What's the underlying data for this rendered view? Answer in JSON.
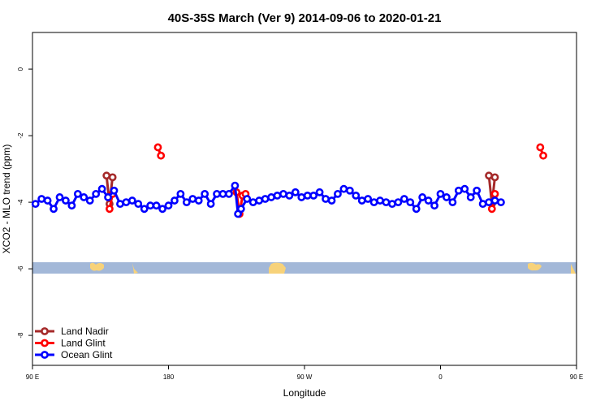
{
  "chart_data": {
    "type": "line",
    "title": "40S-35S March (Ver 9)   2014-09-06 to 2020-01-21",
    "xlabel": "Longitude",
    "ylabel": "XCO2 - MLO trend (ppm)",
    "xlim": [
      90,
      450
    ],
    "ylim": [
      -8.9,
      1.1
    ],
    "x_ticks": [
      {
        "value": 90,
        "label": "90 E"
      },
      {
        "value": 180,
        "label": "180"
      },
      {
        "value": 270,
        "label": "90 W"
      },
      {
        "value": 360,
        "label": "0"
      },
      {
        "value": 450,
        "label": "90 E"
      },
      {
        "value": 540,
        "label": "180"
      }
    ],
    "y_ticks": [
      {
        "value": 0,
        "label": "0"
      },
      {
        "value": -2,
        "label": "-2"
      },
      {
        "value": -4,
        "label": "-4"
      },
      {
        "value": -6,
        "label": "-6"
      },
      {
        "value": -8,
        "label": "-8"
      }
    ],
    "grid": false,
    "legend_position": "bottom-left",
    "series": [
      {
        "name": "Land Nadir",
        "color": "#a52a2a",
        "segments": [
          [
            [
              139,
              -3.2
            ],
            [
              141,
              -4.05
            ],
            [
              143,
              -3.25
            ]
          ],
          [
            [
              392,
              -3.2
            ],
            [
              394,
              -4.05
            ],
            [
              396,
              -3.25
            ]
          ]
        ]
      },
      {
        "name": "Land Glint",
        "color": "#ff0000",
        "segments": [
          [
            [
              141,
              -4.2
            ],
            [
              143,
              -3.75
            ]
          ],
          [
            [
              173,
              -2.35
            ],
            [
              175,
              -2.6
            ]
          ],
          [
            [
              225,
              -3.7
            ],
            [
              227,
              -4.35
            ],
            [
              229,
              -3.8
            ],
            [
              231,
              -3.75
            ]
          ],
          [
            [
              394,
              -4.2
            ],
            [
              396,
              -3.75
            ]
          ],
          [
            [
              426,
              -2.35
            ],
            [
              428,
              -2.6
            ]
          ]
        ]
      },
      {
        "name": "Ocean Glint",
        "color": "#0000ff",
        "segments": [
          [
            [
              92,
              -4.05
            ],
            [
              96,
              -3.9
            ],
            [
              100,
              -3.95
            ],
            [
              104,
              -4.2
            ],
            [
              108,
              -3.85
            ],
            [
              112,
              -3.95
            ],
            [
              116,
              -4.1
            ],
            [
              120,
              -3.75
            ],
            [
              124,
              -3.85
            ],
            [
              128,
              -3.95
            ],
            [
              132,
              -3.75
            ],
            [
              136,
              -3.6
            ],
            [
              140,
              -3.85
            ],
            [
              144,
              -3.65
            ],
            [
              148,
              -4.05
            ],
            [
              152,
              -4.0
            ],
            [
              156,
              -3.95
            ],
            [
              160,
              -4.05
            ],
            [
              164,
              -4.2
            ],
            [
              168,
              -4.1
            ],
            [
              172,
              -4.1
            ],
            [
              176,
              -4.2
            ],
            [
              180,
              -4.1
            ],
            [
              184,
              -3.95
            ],
            [
              188,
              -3.75
            ],
            [
              192,
              -4.0
            ],
            [
              196,
              -3.9
            ],
            [
              200,
              -3.95
            ],
            [
              204,
              -3.75
            ],
            [
              208,
              -4.05
            ],
            [
              212,
              -3.75
            ],
            [
              216,
              -3.75
            ],
            [
              220,
              -3.75
            ],
            [
              224,
              -3.5
            ],
            [
              226,
              -4.35
            ],
            [
              228,
              -4.2
            ],
            [
              232,
              -3.9
            ],
            [
              236,
              -4.0
            ],
            [
              240,
              -3.95
            ],
            [
              244,
              -3.9
            ],
            [
              248,
              -3.85
            ],
            [
              252,
              -3.8
            ],
            [
              256,
              -3.75
            ],
            [
              260,
              -3.8
            ],
            [
              264,
              -3.7
            ],
            [
              268,
              -3.85
            ],
            [
              272,
              -3.8
            ],
            [
              276,
              -3.8
            ],
            [
              280,
              -3.7
            ],
            [
              284,
              -3.9
            ],
            [
              288,
              -3.95
            ],
            [
              292,
              -3.75
            ],
            [
              296,
              -3.6
            ],
            [
              300,
              -3.65
            ],
            [
              304,
              -3.8
            ],
            [
              308,
              -3.95
            ],
            [
              312,
              -3.9
            ],
            [
              316,
              -4.0
            ],
            [
              320,
              -3.95
            ],
            [
              324,
              -4.0
            ],
            [
              328,
              -4.05
            ],
            [
              332,
              -4.0
            ],
            [
              336,
              -3.9
            ],
            [
              340,
              -4.0
            ],
            [
              344,
              -4.2
            ],
            [
              348,
              -3.85
            ],
            [
              352,
              -3.95
            ],
            [
              356,
              -4.1
            ],
            [
              360,
              -3.75
            ],
            [
              364,
              -3.85
            ],
            [
              368,
              -4.0
            ],
            [
              372,
              -3.65
            ],
            [
              376,
              -3.6
            ],
            [
              380,
              -3.85
            ],
            [
              384,
              -3.65
            ],
            [
              388,
              -4.05
            ],
            [
              392,
              -4.0
            ],
            [
              396,
              -3.95
            ],
            [
              400,
              -4.0
            ]
          ]
        ]
      }
    ]
  }
}
